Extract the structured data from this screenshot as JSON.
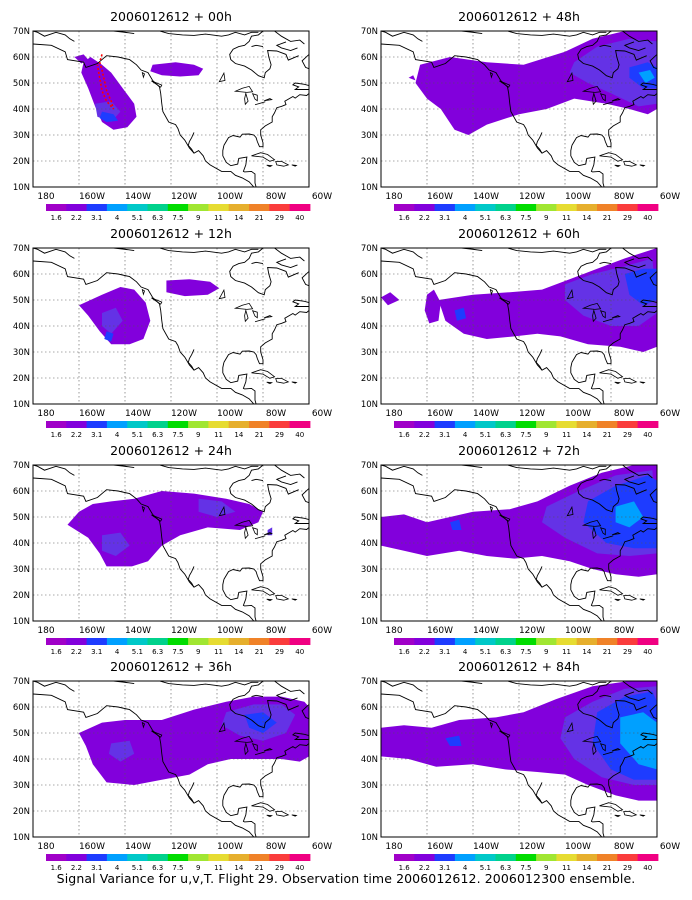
{
  "caption": "Signal Variance for u,v,T. Flight 29. Observation time 2006012612. 2006012300 ensemble.",
  "lat_labels": [
    "70N",
    "60N",
    "50N",
    "40N",
    "30N",
    "20N",
    "10N"
  ],
  "lon_labels": [
    "180",
    "160W",
    "140W",
    "120W",
    "100W",
    "80W",
    "60W"
  ],
  "colorbar": {
    "colors": [
      "#a000c8",
      "#8200dc",
      "#1e3cff",
      "#00a0ff",
      "#00c8c8",
      "#00d28c",
      "#00dc00",
      "#a0e632",
      "#e6dc32",
      "#e6af2d",
      "#f08228",
      "#fa3c3c",
      "#f00082"
    ],
    "labels": [
      "1.6",
      "2.2",
      "3.1",
      "4",
      "5.1",
      "6.3",
      "7.5",
      "9",
      "11",
      "14",
      "21",
      "29",
      "40"
    ]
  },
  "panels": [
    {
      "id": "p00",
      "title": "2006012612 + 00h"
    },
    {
      "id": "p48",
      "title": "2006012612 + 48h"
    },
    {
      "id": "p12",
      "title": "2006012612 + 12h"
    },
    {
      "id": "p60",
      "title": "2006012612 + 60h"
    },
    {
      "id": "p24",
      "title": "2006012612 + 24h"
    },
    {
      "id": "p72",
      "title": "2006012612 + 72h"
    },
    {
      "id": "p36",
      "title": "2006012612 + 36h"
    },
    {
      "id": "p84",
      "title": "2006012612 + 84h"
    }
  ],
  "flight_track_color": "#ff0000",
  "shading_colors": {
    "base": "#8200dc",
    "mid": "#6432e6",
    "strong": "#1e3cff",
    "peak": "#00a0ff"
  }
}
